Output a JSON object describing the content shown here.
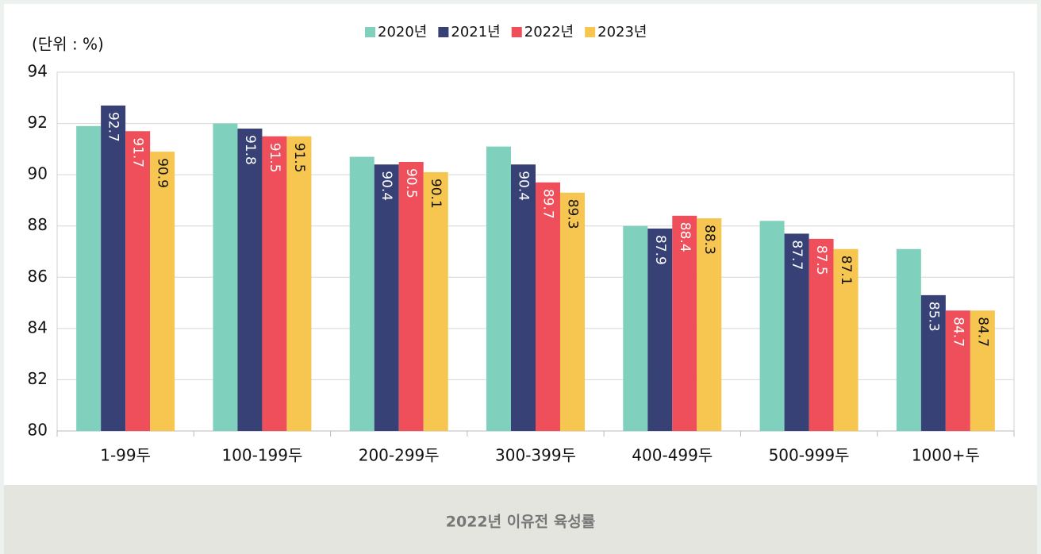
{
  "chart_data": {
    "type": "bar",
    "unit_label": "(단위 : %)",
    "caption": "2022년 이유전 육성률",
    "categories": [
      "1-99두",
      "100-199두",
      "200-299두",
      "300-399두",
      "400-499두",
      "500-999두",
      "1000+두"
    ],
    "series": [
      {
        "name": "2020년",
        "color": "#7fd1bd",
        "values": [
          91.9,
          92.0,
          90.7,
          91.1,
          88.0,
          88.2,
          87.1
        ]
      },
      {
        "name": "2021년",
        "color": "#374176",
        "label_color": "#ffffff",
        "values": [
          92.7,
          91.8,
          90.4,
          90.4,
          87.9,
          87.7,
          85.3
        ]
      },
      {
        "name": "2022년",
        "color": "#ef4f5a",
        "label_color": "#ffffff",
        "values": [
          91.7,
          91.5,
          90.5,
          89.7,
          88.4,
          87.5,
          84.7
        ]
      },
      {
        "name": "2023년",
        "color": "#f7c650",
        "label_color": "#111111",
        "values": [
          90.9,
          91.5,
          90.1,
          89.3,
          88.3,
          87.1,
          84.7
        ]
      }
    ],
    "ylim": [
      80,
      94
    ],
    "yticks": [
      80,
      82,
      84,
      86,
      88,
      90,
      92,
      94
    ],
    "grid": true,
    "legend": "top"
  }
}
